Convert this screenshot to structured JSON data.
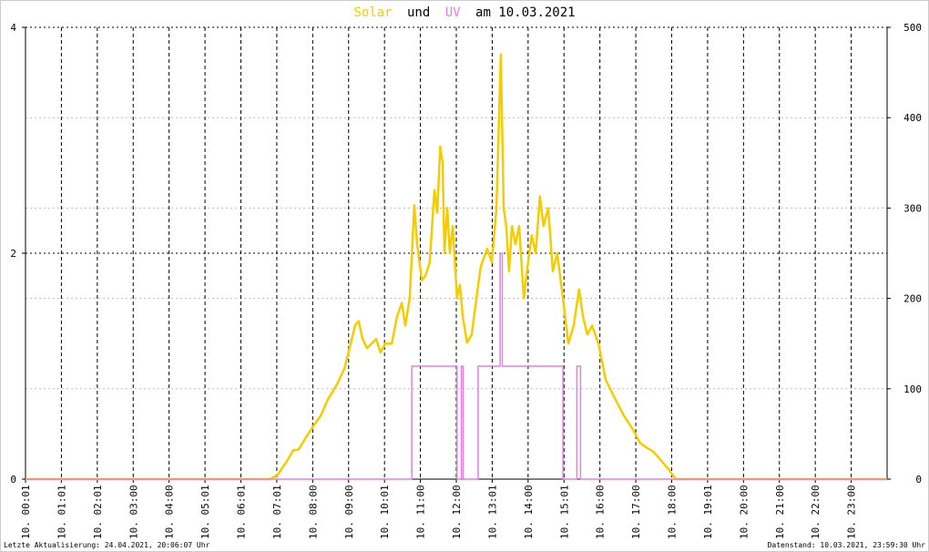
{
  "chart_data": {
    "type": "line",
    "title_parts": [
      "und",
      "am 10.03.2021"
    ],
    "footer_left": "Letzte Aktualisierung: 24.04.2021, 20:06:07 Uhr",
    "footer_right": "Datenstand: 10.03.2021, 23:59:30 Uhr",
    "xlim": [
      0,
      24
    ],
    "xticks": [
      {
        "value": 0,
        "label": "10. 00:01"
      },
      {
        "value": 1,
        "label": "10. 01:01"
      },
      {
        "value": 2,
        "label": "10. 02:01"
      },
      {
        "value": 3,
        "label": "10. 03:00"
      },
      {
        "value": 4,
        "label": "10. 04:00"
      },
      {
        "value": 5,
        "label": "10. 05:01"
      },
      {
        "value": 6,
        "label": "10. 06:01"
      },
      {
        "value": 7,
        "label": "10. 07:01"
      },
      {
        "value": 8,
        "label": "10. 08:00"
      },
      {
        "value": 9,
        "label": "10. 09:00"
      },
      {
        "value": 10,
        "label": "10. 10:01"
      },
      {
        "value": 11,
        "label": "10. 11:00"
      },
      {
        "value": 12,
        "label": "10. 12:00"
      },
      {
        "value": 13,
        "label": "10. 13:01"
      },
      {
        "value": 14,
        "label": "10. 14:00"
      },
      {
        "value": 15,
        "label": "10. 15:01"
      },
      {
        "value": 16,
        "label": "10. 16:00"
      },
      {
        "value": 17,
        "label": "10. 17:00"
      },
      {
        "value": 18,
        "label": "10. 18:00"
      },
      {
        "value": 19,
        "label": "10. 19:01"
      },
      {
        "value": 20,
        "label": "10. 20:00"
      },
      {
        "value": 21,
        "label": "10. 21:00"
      },
      {
        "value": 22,
        "label": "10. 22:00"
      },
      {
        "value": 23,
        "label": "10. 23:00"
      }
    ],
    "ylim": [
      0,
      4
    ],
    "yticks": [
      0,
      2,
      4
    ],
    "y2lim": [
      0,
      500
    ],
    "y2ticks": [
      0,
      100,
      200,
      300,
      400,
      500
    ],
    "grid": true,
    "series": [
      {
        "name": "Solar",
        "color": "#f5cc00",
        "axis": "y2",
        "x": [
          0,
          6.82,
          7.03,
          7.28,
          7.46,
          7.61,
          7.79,
          8.04,
          8.22,
          8.42,
          8.68,
          8.88,
          9.06,
          9.18,
          9.28,
          9.39,
          9.51,
          9.64,
          9.77,
          9.89,
          10.02,
          10.2,
          10.35,
          10.48,
          10.58,
          10.7,
          10.83,
          10.91,
          11.04,
          11.14,
          11.26,
          11.39,
          11.47,
          11.55,
          11.62,
          11.67,
          11.75,
          11.82,
          11.9,
          12.02,
          12.1,
          12.18,
          12.3,
          12.43,
          12.56,
          12.68,
          12.86,
          12.99,
          13.12,
          13.19,
          13.24,
          13.32,
          13.39,
          13.47,
          13.55,
          13.65,
          13.75,
          13.88,
          14.0,
          14.1,
          14.21,
          14.33,
          14.43,
          14.56,
          14.69,
          14.81,
          14.97,
          15.12,
          15.27,
          15.42,
          15.53,
          15.65,
          15.78,
          15.96,
          16.16,
          16.41,
          16.67,
          16.92,
          17.12,
          17.3,
          17.5,
          17.76,
          17.93,
          18.11,
          24
        ],
        "values": [
          0,
          0,
          5,
          20,
          32,
          33,
          45,
          60,
          70,
          88,
          105,
          122,
          150,
          170,
          175,
          155,
          145,
          150,
          155,
          140,
          150,
          150,
          180,
          195,
          170,
          200,
          303,
          260,
          220,
          225,
          240,
          320,
          295,
          368,
          350,
          250,
          300,
          250,
          280,
          200,
          215,
          180,
          151,
          160,
          200,
          235,
          255,
          240,
          300,
          400,
          470,
          300,
          280,
          230,
          280,
          260,
          280,
          200,
          240,
          270,
          250,
          313,
          280,
          300,
          230,
          250,
          200,
          150,
          170,
          210,
          180,
          160,
          170,
          150,
          110,
          90,
          70,
          55,
          40,
          35,
          30,
          18,
          10,
          0,
          0
        ]
      },
      {
        "name": "UV",
        "color": "#e47ee4",
        "x": [
          0,
          10.76,
          10.76,
          12.02,
          12.02,
          12.14,
          12.14,
          12.19,
          12.19,
          12.61,
          12.61,
          13.22,
          13.22,
          13.28,
          13.28,
          14.97,
          14.97,
          15.36,
          15.36,
          15.46,
          15.46,
          24
        ],
        "values": [
          0,
          0,
          1,
          1,
          0,
          0,
          1,
          1,
          0,
          0,
          1,
          1,
          2,
          2,
          1,
          1,
          0,
          0,
          1,
          1,
          0,
          0
        ]
      }
    ]
  }
}
